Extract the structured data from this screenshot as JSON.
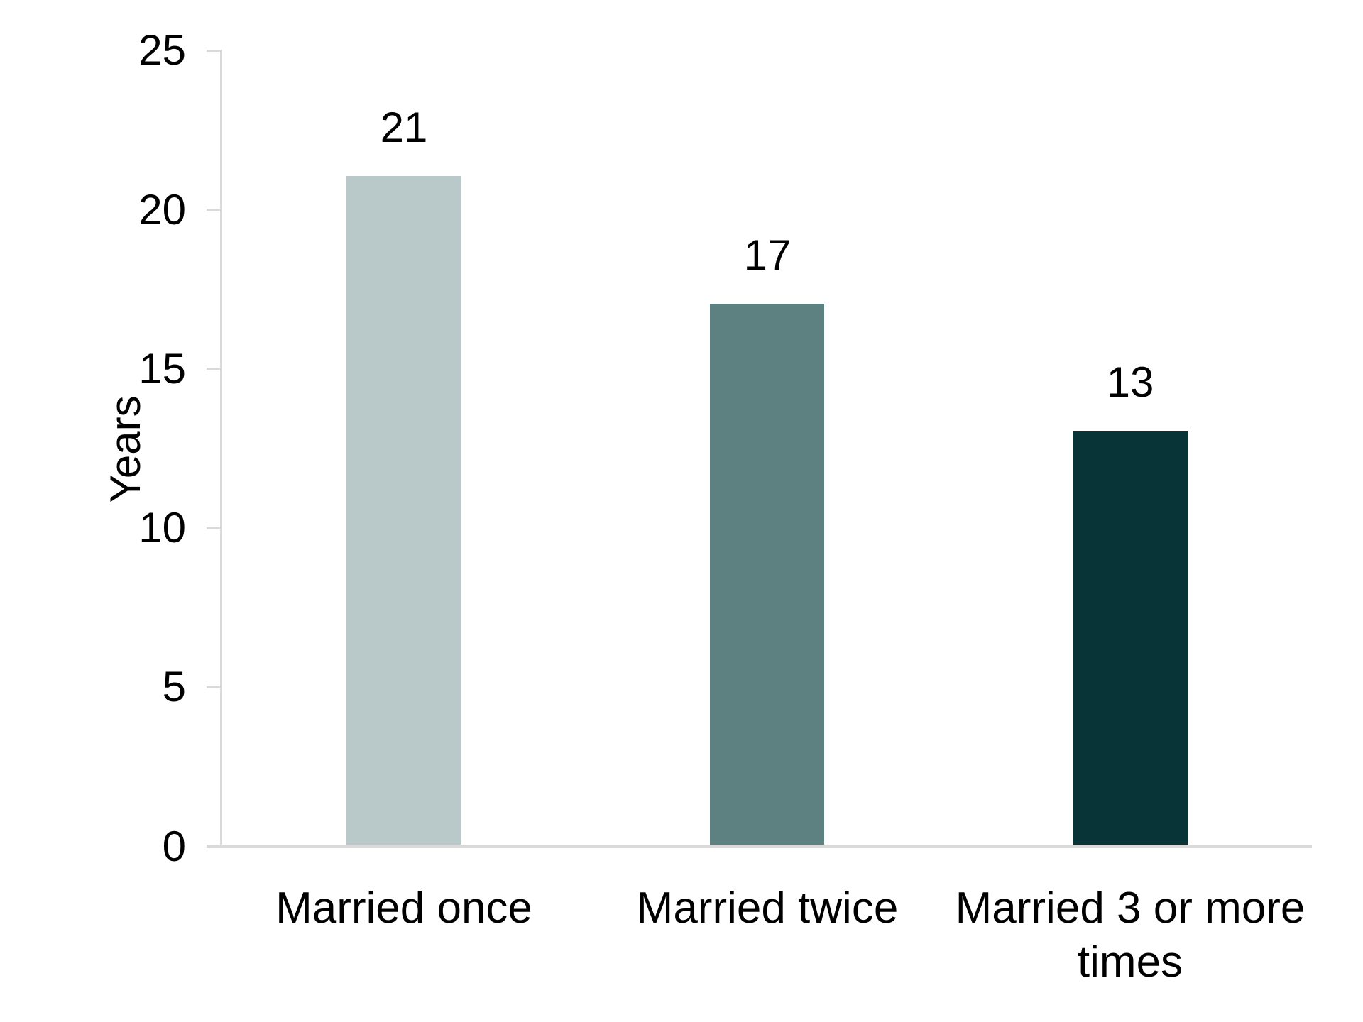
{
  "chart_data": {
    "type": "bar",
    "categories": [
      "Married once",
      "Married twice",
      "Married 3 or more\ntimes"
    ],
    "values": [
      21,
      17,
      13
    ],
    "data_labels": [
      "21",
      "17",
      "13"
    ],
    "ylabel": "Years",
    "yticks": [
      0,
      5,
      10,
      15,
      20,
      25
    ],
    "ylim": [
      0,
      25
    ],
    "bar_colors": [
      "#b9c8c8",
      "#5d8180",
      "#083437"
    ],
    "axis_color": "#d9d9d9",
    "text_color": "#000000",
    "background_color": "#ffffff",
    "grid": "off",
    "legend": "none"
  }
}
